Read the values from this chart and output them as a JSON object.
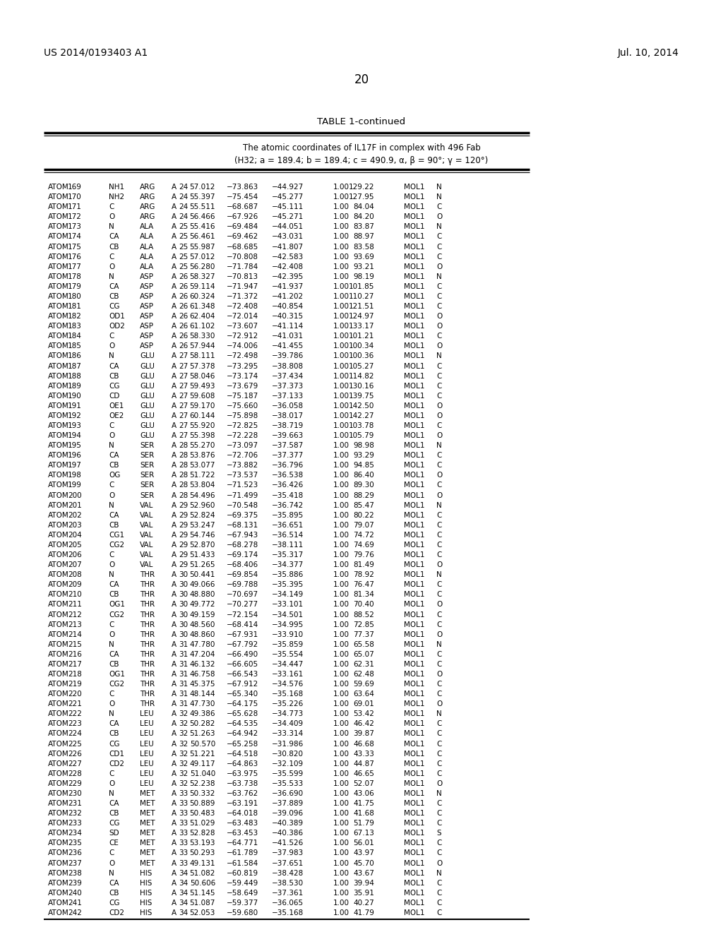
{
  "header_left": "US 2014/0193403 A1",
  "header_right": "Jul. 10, 2014",
  "page_number": "20",
  "table_title": "TABLE 1-continued",
  "table_subtitle1": "The atomic coordinates of IL17F in complex with 496 Fab",
  "table_subtitle2": "(H32; a = 189.4; b = 189.4; c = 490.9, α, β = 90°; γ = 120°)",
  "rows": [
    [
      "ATOM",
      "169",
      "NH1",
      "ARG",
      "A",
      "24",
      "57.012",
      "−73.863",
      "−44.927",
      "1.00",
      "129.22",
      "MOL1",
      "N"
    ],
    [
      "ATOM",
      "170",
      "NH2",
      "ARG",
      "A",
      "24",
      "55.397",
      "−75.454",
      "−45.277",
      "1.00",
      "127.95",
      "MOL1",
      "N"
    ],
    [
      "ATOM",
      "171",
      "C",
      "ARG",
      "A",
      "24",
      "55.511",
      "−68.687",
      "−45.111",
      "1.00",
      "84.04",
      "MOL1",
      "C"
    ],
    [
      "ATOM",
      "172",
      "O",
      "ARG",
      "A",
      "24",
      "56.466",
      "−67.926",
      "−45.271",
      "1.00",
      "84.20",
      "MOL1",
      "O"
    ],
    [
      "ATOM",
      "173",
      "N",
      "ALA",
      "A",
      "25",
      "55.416",
      "−69.484",
      "−44.051",
      "1.00",
      "83.87",
      "MOL1",
      "N"
    ],
    [
      "ATOM",
      "174",
      "CA",
      "ALA",
      "A",
      "25",
      "56.461",
      "−69.462",
      "−43.031",
      "1.00",
      "88.97",
      "MOL1",
      "C"
    ],
    [
      "ATOM",
      "175",
      "CB",
      "ALA",
      "A",
      "25",
      "55.987",
      "−68.685",
      "−41.807",
      "1.00",
      "83.58",
      "MOL1",
      "C"
    ],
    [
      "ATOM",
      "176",
      "C",
      "ALA",
      "A",
      "25",
      "57.012",
      "−70.808",
      "−42.583",
      "1.00",
      "93.69",
      "MOL1",
      "C"
    ],
    [
      "ATOM",
      "177",
      "O",
      "ALA",
      "A",
      "25",
      "56.280",
      "−71.784",
      "−42.408",
      "1.00",
      "93.21",
      "MOL1",
      "O"
    ],
    [
      "ATOM",
      "178",
      "N",
      "ASP",
      "A",
      "26",
      "58.327",
      "−70.813",
      "−42.395",
      "1.00",
      "98.19",
      "MOL1",
      "N"
    ],
    [
      "ATOM",
      "179",
      "CA",
      "ASP",
      "A",
      "26",
      "59.114",
      "−71.947",
      "−41.937",
      "1.00",
      "101.85",
      "MOL1",
      "C"
    ],
    [
      "ATOM",
      "180",
      "CB",
      "ASP",
      "A",
      "26",
      "60.324",
      "−71.372",
      "−41.202",
      "1.00",
      "110.27",
      "MOL1",
      "C"
    ],
    [
      "ATOM",
      "181",
      "CG",
      "ASP",
      "A",
      "26",
      "61.348",
      "−72.408",
      "−40.854",
      "1.00",
      "121.51",
      "MOL1",
      "C"
    ],
    [
      "ATOM",
      "182",
      "OD1",
      "ASP",
      "A",
      "26",
      "62.404",
      "−72.014",
      "−40.315",
      "1.00",
      "124.97",
      "MOL1",
      "O"
    ],
    [
      "ATOM",
      "183",
      "OD2",
      "ASP",
      "A",
      "26",
      "61.102",
      "−73.607",
      "−41.114",
      "1.00",
      "133.17",
      "MOL1",
      "O"
    ],
    [
      "ATOM",
      "184",
      "C",
      "ASP",
      "A",
      "26",
      "58.330",
      "−72.912",
      "−41.031",
      "1.00",
      "101.21",
      "MOL1",
      "C"
    ],
    [
      "ATOM",
      "185",
      "O",
      "ASP",
      "A",
      "26",
      "57.944",
      "−74.006",
      "−41.455",
      "1.00",
      "100.34",
      "MOL1",
      "O"
    ],
    [
      "ATOM",
      "186",
      "N",
      "GLU",
      "A",
      "27",
      "58.111",
      "−72.498",
      "−39.786",
      "1.00",
      "100.36",
      "MOL1",
      "N"
    ],
    [
      "ATOM",
      "187",
      "CA",
      "GLU",
      "A",
      "27",
      "57.378",
      "−73.295",
      "−38.808",
      "1.00",
      "105.27",
      "MOL1",
      "C"
    ],
    [
      "ATOM",
      "188",
      "CB",
      "GLU",
      "A",
      "27",
      "58.046",
      "−73.174",
      "−37.434",
      "1.00",
      "114.82",
      "MOL1",
      "C"
    ],
    [
      "ATOM",
      "189",
      "CG",
      "GLU",
      "A",
      "27",
      "59.493",
      "−73.679",
      "−37.373",
      "1.00",
      "130.16",
      "MOL1",
      "C"
    ],
    [
      "ATOM",
      "190",
      "CD",
      "GLU",
      "A",
      "27",
      "59.608",
      "−75.187",
      "−37.133",
      "1.00",
      "139.75",
      "MOL1",
      "C"
    ],
    [
      "ATOM",
      "191",
      "OE1",
      "GLU",
      "A",
      "27",
      "59.170",
      "−75.660",
      "−36.058",
      "1.00",
      "142.50",
      "MOL1",
      "O"
    ],
    [
      "ATOM",
      "192",
      "OE2",
      "GLU",
      "A",
      "27",
      "60.144",
      "−75.898",
      "−38.017",
      "1.00",
      "142.27",
      "MOL1",
      "O"
    ],
    [
      "ATOM",
      "193",
      "C",
      "GLU",
      "A",
      "27",
      "55.920",
      "−72.825",
      "−38.719",
      "1.00",
      "103.78",
      "MOL1",
      "C"
    ],
    [
      "ATOM",
      "194",
      "O",
      "GLU",
      "A",
      "27",
      "55.398",
      "−72.228",
      "−39.663",
      "1.00",
      "105.79",
      "MOL1",
      "O"
    ],
    [
      "ATOM",
      "195",
      "N",
      "SER",
      "A",
      "28",
      "55.270",
      "−73.097",
      "−37.587",
      "1.00",
      "98.98",
      "MOL1",
      "N"
    ],
    [
      "ATOM",
      "196",
      "CA",
      "SER",
      "A",
      "28",
      "53.876",
      "−72.706",
      "−37.377",
      "1.00",
      "93.29",
      "MOL1",
      "C"
    ],
    [
      "ATOM",
      "197",
      "CB",
      "SER",
      "A",
      "28",
      "53.077",
      "−73.882",
      "−36.796",
      "1.00",
      "94.85",
      "MOL1",
      "C"
    ],
    [
      "ATOM",
      "198",
      "OG",
      "SER",
      "A",
      "28",
      "51.722",
      "−73.537",
      "−36.538",
      "1.00",
      "86.40",
      "MOL1",
      "O"
    ],
    [
      "ATOM",
      "199",
      "C",
      "SER",
      "A",
      "28",
      "53.804",
      "−71.523",
      "−36.426",
      "1.00",
      "89.30",
      "MOL1",
      "C"
    ],
    [
      "ATOM",
      "200",
      "O",
      "SER",
      "A",
      "28",
      "54.496",
      "−71.499",
      "−35.418",
      "1.00",
      "88.29",
      "MOL1",
      "O"
    ],
    [
      "ATOM",
      "201",
      "N",
      "VAL",
      "A",
      "29",
      "52.960",
      "−70.548",
      "−36.742",
      "1.00",
      "85.47",
      "MOL1",
      "N"
    ],
    [
      "ATOM",
      "202",
      "CA",
      "VAL",
      "A",
      "29",
      "52.824",
      "−69.375",
      "−35.895",
      "1.00",
      "80.22",
      "MOL1",
      "C"
    ],
    [
      "ATOM",
      "203",
      "CB",
      "VAL",
      "A",
      "29",
      "53.247",
      "−68.131",
      "−36.651",
      "1.00",
      "79.07",
      "MOL1",
      "C"
    ],
    [
      "ATOM",
      "204",
      "CG1",
      "VAL",
      "A",
      "29",
      "54.746",
      "−67.943",
      "−36.514",
      "1.00",
      "74.72",
      "MOL1",
      "C"
    ],
    [
      "ATOM",
      "205",
      "CG2",
      "VAL",
      "A",
      "29",
      "52.870",
      "−68.278",
      "−38.111",
      "1.00",
      "74.69",
      "MOL1",
      "C"
    ],
    [
      "ATOM",
      "206",
      "C",
      "VAL",
      "A",
      "29",
      "51.433",
      "−69.174",
      "−35.317",
      "1.00",
      "79.76",
      "MOL1",
      "C"
    ],
    [
      "ATOM",
      "207",
      "O",
      "VAL",
      "A",
      "29",
      "51.265",
      "−68.406",
      "−34.377",
      "1.00",
      "81.49",
      "MOL1",
      "O"
    ],
    [
      "ATOM",
      "208",
      "N",
      "THR",
      "A",
      "30",
      "50.441",
      "−69.854",
      "−35.886",
      "1.00",
      "78.92",
      "MOL1",
      "N"
    ],
    [
      "ATOM",
      "209",
      "CA",
      "THR",
      "A",
      "30",
      "49.066",
      "−69.788",
      "−35.395",
      "1.00",
      "76.47",
      "MOL1",
      "C"
    ],
    [
      "ATOM",
      "210",
      "CB",
      "THR",
      "A",
      "30",
      "48.880",
      "−70.697",
      "−34.149",
      "1.00",
      "81.34",
      "MOL1",
      "C"
    ],
    [
      "ATOM",
      "211",
      "OG1",
      "THR",
      "A",
      "30",
      "49.772",
      "−70.277",
      "−33.101",
      "1.00",
      "70.40",
      "MOL1",
      "O"
    ],
    [
      "ATOM",
      "212",
      "CG2",
      "THR",
      "A",
      "30",
      "49.159",
      "−72.154",
      "−34.501",
      "1.00",
      "88.52",
      "MOL1",
      "C"
    ],
    [
      "ATOM",
      "213",
      "C",
      "THR",
      "A",
      "30",
      "48.560",
      "−68.414",
      "−34.995",
      "1.00",
      "72.85",
      "MOL1",
      "C"
    ],
    [
      "ATOM",
      "214",
      "O",
      "THR",
      "A",
      "30",
      "48.860",
      "−67.931",
      "−33.910",
      "1.00",
      "77.37",
      "MOL1",
      "O"
    ],
    [
      "ATOM",
      "215",
      "N",
      "THR",
      "A",
      "31",
      "47.780",
      "−67.792",
      "−35.859",
      "1.00",
      "65.58",
      "MOL1",
      "N"
    ],
    [
      "ATOM",
      "216",
      "CA",
      "THR",
      "A",
      "31",
      "47.204",
      "−66.490",
      "−35.554",
      "1.00",
      "65.07",
      "MOL1",
      "C"
    ],
    [
      "ATOM",
      "217",
      "CB",
      "THR",
      "A",
      "31",
      "46.132",
      "−66.605",
      "−34.447",
      "1.00",
      "62.31",
      "MOL1",
      "C"
    ],
    [
      "ATOM",
      "218",
      "OG1",
      "THR",
      "A",
      "31",
      "46.758",
      "−66.543",
      "−33.161",
      "1.00",
      "62.48",
      "MOL1",
      "O"
    ],
    [
      "ATOM",
      "219",
      "CG2",
      "THR",
      "A",
      "31",
      "45.375",
      "−67.912",
      "−34.576",
      "1.00",
      "59.69",
      "MOL1",
      "C"
    ],
    [
      "ATOM",
      "220",
      "C",
      "THR",
      "A",
      "31",
      "48.144",
      "−65.340",
      "−35.168",
      "1.00",
      "63.64",
      "MOL1",
      "C"
    ],
    [
      "ATOM",
      "221",
      "O",
      "THR",
      "A",
      "31",
      "47.730",
      "−64.175",
      "−35.226",
      "1.00",
      "69.01",
      "MOL1",
      "O"
    ],
    [
      "ATOM",
      "222",
      "N",
      "LEU",
      "A",
      "32",
      "49.386",
      "−65.628",
      "−34.773",
      "1.00",
      "53.42",
      "MOL1",
      "N"
    ],
    [
      "ATOM",
      "223",
      "CA",
      "LEU",
      "A",
      "32",
      "50.282",
      "−64.535",
      "−34.409",
      "1.00",
      "46.42",
      "MOL1",
      "C"
    ],
    [
      "ATOM",
      "224",
      "CB",
      "LEU",
      "A",
      "32",
      "51.263",
      "−64.942",
      "−33.314",
      "1.00",
      "39.87",
      "MOL1",
      "C"
    ],
    [
      "ATOM",
      "225",
      "CG",
      "LEU",
      "A",
      "32",
      "50.570",
      "−65.258",
      "−31.986",
      "1.00",
      "46.68",
      "MOL1",
      "C"
    ],
    [
      "ATOM",
      "226",
      "CD1",
      "LEU",
      "A",
      "32",
      "51.221",
      "−64.518",
      "−30.820",
      "1.00",
      "43.33",
      "MOL1",
      "C"
    ],
    [
      "ATOM",
      "227",
      "CD2",
      "LEU",
      "A",
      "32",
      "49.117",
      "−64.863",
      "−32.109",
      "1.00",
      "44.87",
      "MOL1",
      "C"
    ],
    [
      "ATOM",
      "228",
      "C",
      "LEU",
      "A",
      "32",
      "51.040",
      "−63.975",
      "−35.599",
      "1.00",
      "46.65",
      "MOL1",
      "C"
    ],
    [
      "ATOM",
      "229",
      "O",
      "LEU",
      "A",
      "32",
      "52.238",
      "−63.738",
      "−35.533",
      "1.00",
      "52.07",
      "MOL1",
      "O"
    ],
    [
      "ATOM",
      "230",
      "N",
      "MET",
      "A",
      "33",
      "50.332",
      "−63.762",
      "−36.690",
      "1.00",
      "43.06",
      "MOL1",
      "N"
    ],
    [
      "ATOM",
      "231",
      "CA",
      "MET",
      "A",
      "33",
      "50.889",
      "−63.191",
      "−37.889",
      "1.00",
      "41.75",
      "MOL1",
      "C"
    ],
    [
      "ATOM",
      "232",
      "CB",
      "MET",
      "A",
      "33",
      "50.483",
      "−64.018",
      "−39.096",
      "1.00",
      "41.68",
      "MOL1",
      "C"
    ],
    [
      "ATOM",
      "233",
      "CG",
      "MET",
      "A",
      "33",
      "51.029",
      "−63.483",
      "−40.389",
      "1.00",
      "51.79",
      "MOL1",
      "C"
    ],
    [
      "ATOM",
      "234",
      "SD",
      "MET",
      "A",
      "33",
      "52.828",
      "−63.453",
      "−40.386",
      "1.00",
      "67.13",
      "MOL1",
      "S"
    ],
    [
      "ATOM",
      "235",
      "CE",
      "MET",
      "A",
      "33",
      "53.193",
      "−64.771",
      "−41.526",
      "1.00",
      "56.01",
      "MOL1",
      "C"
    ],
    [
      "ATOM",
      "236",
      "C",
      "MET",
      "A",
      "33",
      "50.293",
      "−61.789",
      "−37.983",
      "1.00",
      "43.97",
      "MOL1",
      "C"
    ],
    [
      "ATOM",
      "237",
      "O",
      "MET",
      "A",
      "33",
      "49.131",
      "−61.584",
      "−37.651",
      "1.00",
      "45.70",
      "MOL1",
      "O"
    ],
    [
      "ATOM",
      "238",
      "N",
      "HIS",
      "A",
      "34",
      "51.082",
      "−60.819",
      "−38.428",
      "1.00",
      "43.67",
      "MOL1",
      "N"
    ],
    [
      "ATOM",
      "239",
      "CA",
      "HIS",
      "A",
      "34",
      "50.606",
      "−59.449",
      "−38.530",
      "1.00",
      "39.94",
      "MOL1",
      "C"
    ],
    [
      "ATOM",
      "240",
      "CB",
      "HIS",
      "A",
      "34",
      "51.145",
      "−58.649",
      "−37.361",
      "1.00",
      "35.91",
      "MOL1",
      "C"
    ],
    [
      "ATOM",
      "241",
      "CG",
      "HIS",
      "A",
      "34",
      "51.087",
      "−59.377",
      "−36.065",
      "1.00",
      "40.27",
      "MOL1",
      "C"
    ],
    [
      "ATOM",
      "242",
      "CD2",
      "HIS",
      "A",
      "34",
      "52.053",
      "−59.680",
      "−35.168",
      "1.00",
      "41.79",
      "MOL1",
      "C"
    ]
  ],
  "background_color": "#ffffff",
  "text_color": "#000000"
}
